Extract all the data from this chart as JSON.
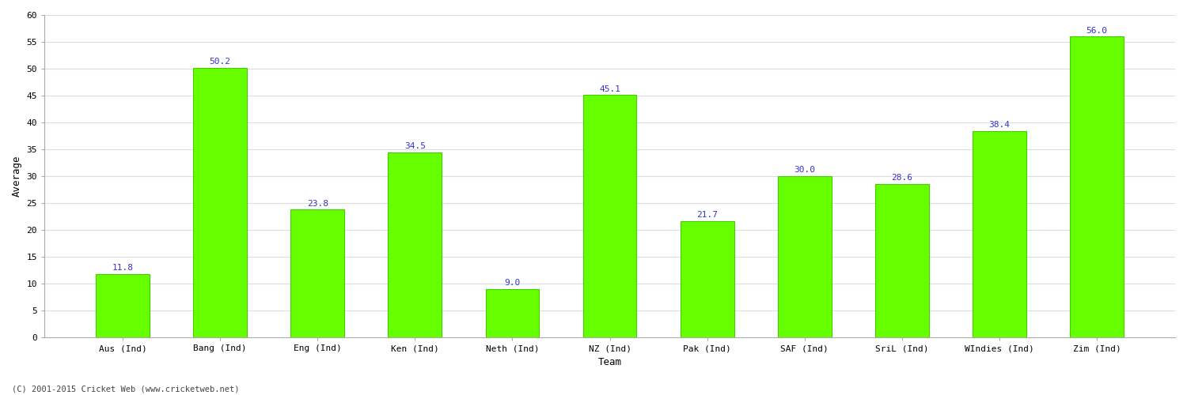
{
  "categories": [
    "Aus (Ind)",
    "Bang (Ind)",
    "Eng (Ind)",
    "Ken (Ind)",
    "Neth (Ind)",
    "NZ (Ind)",
    "Pak (Ind)",
    "SAF (Ind)",
    "SriL (Ind)",
    "WIndies (Ind)",
    "Zim (Ind)"
  ],
  "values": [
    11.8,
    50.2,
    23.8,
    34.5,
    9.0,
    45.1,
    21.7,
    30.0,
    28.6,
    38.4,
    56.0
  ],
  "bar_color": "#66ff00",
  "bar_edge_color": "#44cc00",
  "label_color": "#3333cc",
  "xlabel": "Team",
  "ylabel": "Average",
  "ylim": [
    0,
    60
  ],
  "yticks": [
    0,
    5,
    10,
    15,
    20,
    25,
    30,
    35,
    40,
    45,
    50,
    55,
    60
  ],
  "grid_color": "#dddddd",
  "background_color": "#ffffff",
  "footer_text": "(C) 2001-2015 Cricket Web (www.cricketweb.net)",
  "label_fontsize": 8,
  "axis_label_fontsize": 9,
  "tick_fontsize": 8,
  "bar_width": 0.55
}
